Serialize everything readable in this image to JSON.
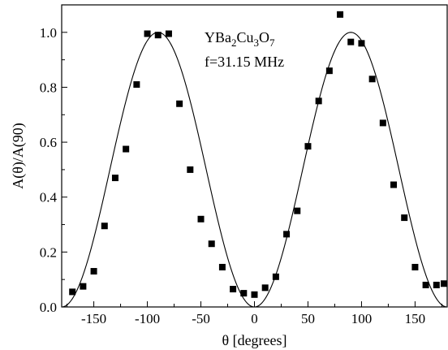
{
  "chart_data": {
    "type": "scatter",
    "xlabel": "θ [degrees]",
    "ylabel": "A(θ)/A(90)",
    "xlim": [
      -180,
      180
    ],
    "ylim": [
      0,
      1.1
    ],
    "xticks": [
      -150,
      -100,
      -50,
      0,
      50,
      100,
      150
    ],
    "xtick_labels": [
      "-150",
      "-100",
      "-50",
      "0",
      "50",
      "100",
      "150"
    ],
    "yticks": [
      0,
      0.2,
      0.4,
      0.6,
      0.8,
      1.0
    ],
    "ytick_labels": [
      "0.0",
      "0.2",
      "0.4",
      "0.6",
      "0.8",
      "1.0"
    ],
    "grid": false,
    "annotation_line1": {
      "parts": [
        {
          "t": "YBa",
          "sub": false
        },
        {
          "t": "2",
          "sub": true
        },
        {
          "t": "Cu",
          "sub": false
        },
        {
          "t": "3",
          "sub": true
        },
        {
          "t": "O",
          "sub": false
        },
        {
          "t": "7",
          "sub": true
        }
      ]
    },
    "annotation_line2": "f=31.15 MHz",
    "series": [
      {
        "kind": "points",
        "marker": "square",
        "x": [
          -170,
          -160,
          -150,
          -140,
          -130,
          -120,
          -110,
          -100,
          -90,
          -80,
          -70,
          -60,
          -50,
          -40,
          -30,
          -20,
          -10,
          0,
          10,
          20,
          30,
          40,
          50,
          60,
          70,
          80,
          90,
          100,
          110,
          120,
          130,
          140,
          150,
          160,
          170,
          180
        ],
        "y": [
          0.055,
          0.075,
          0.13,
          0.295,
          0.47,
          0.575,
          0.81,
          0.995,
          0.99,
          0.995,
          0.74,
          0.5,
          0.32,
          0.23,
          0.145,
          0.065,
          0.05,
          0.045,
          0.07,
          0.11,
          0.265,
          0.35,
          0.585,
          0.75,
          0.86,
          1.065,
          0.965,
          0.96,
          0.83,
          0.67,
          0.445,
          0.325,
          0.145,
          0.08,
          0.08,
          0.085
        ]
      },
      {
        "kind": "line",
        "function": "sin^2(theta)",
        "x": [
          -180,
          -170,
          -160,
          -150,
          -140,
          -130,
          -120,
          -110,
          -100,
          -90,
          -80,
          -70,
          -60,
          -50,
          -40,
          -30,
          -20,
          -10,
          0,
          10,
          20,
          30,
          40,
          50,
          60,
          70,
          80,
          90,
          100,
          110,
          120,
          130,
          140,
          150,
          160,
          170,
          180
        ],
        "y": [
          0,
          0.0302,
          0.117,
          0.25,
          0.4132,
          0.5868,
          0.75,
          0.883,
          0.9698,
          1,
          0.9698,
          0.883,
          0.75,
          0.5868,
          0.4132,
          0.25,
          0.117,
          0.0302,
          0,
          0.0302,
          0.117,
          0.25,
          0.4132,
          0.5868,
          0.75,
          0.883,
          0.9698,
          1,
          0.9698,
          0.883,
          0.75,
          0.5868,
          0.4132,
          0.25,
          0.117,
          0.0302,
          0
        ]
      }
    ]
  }
}
